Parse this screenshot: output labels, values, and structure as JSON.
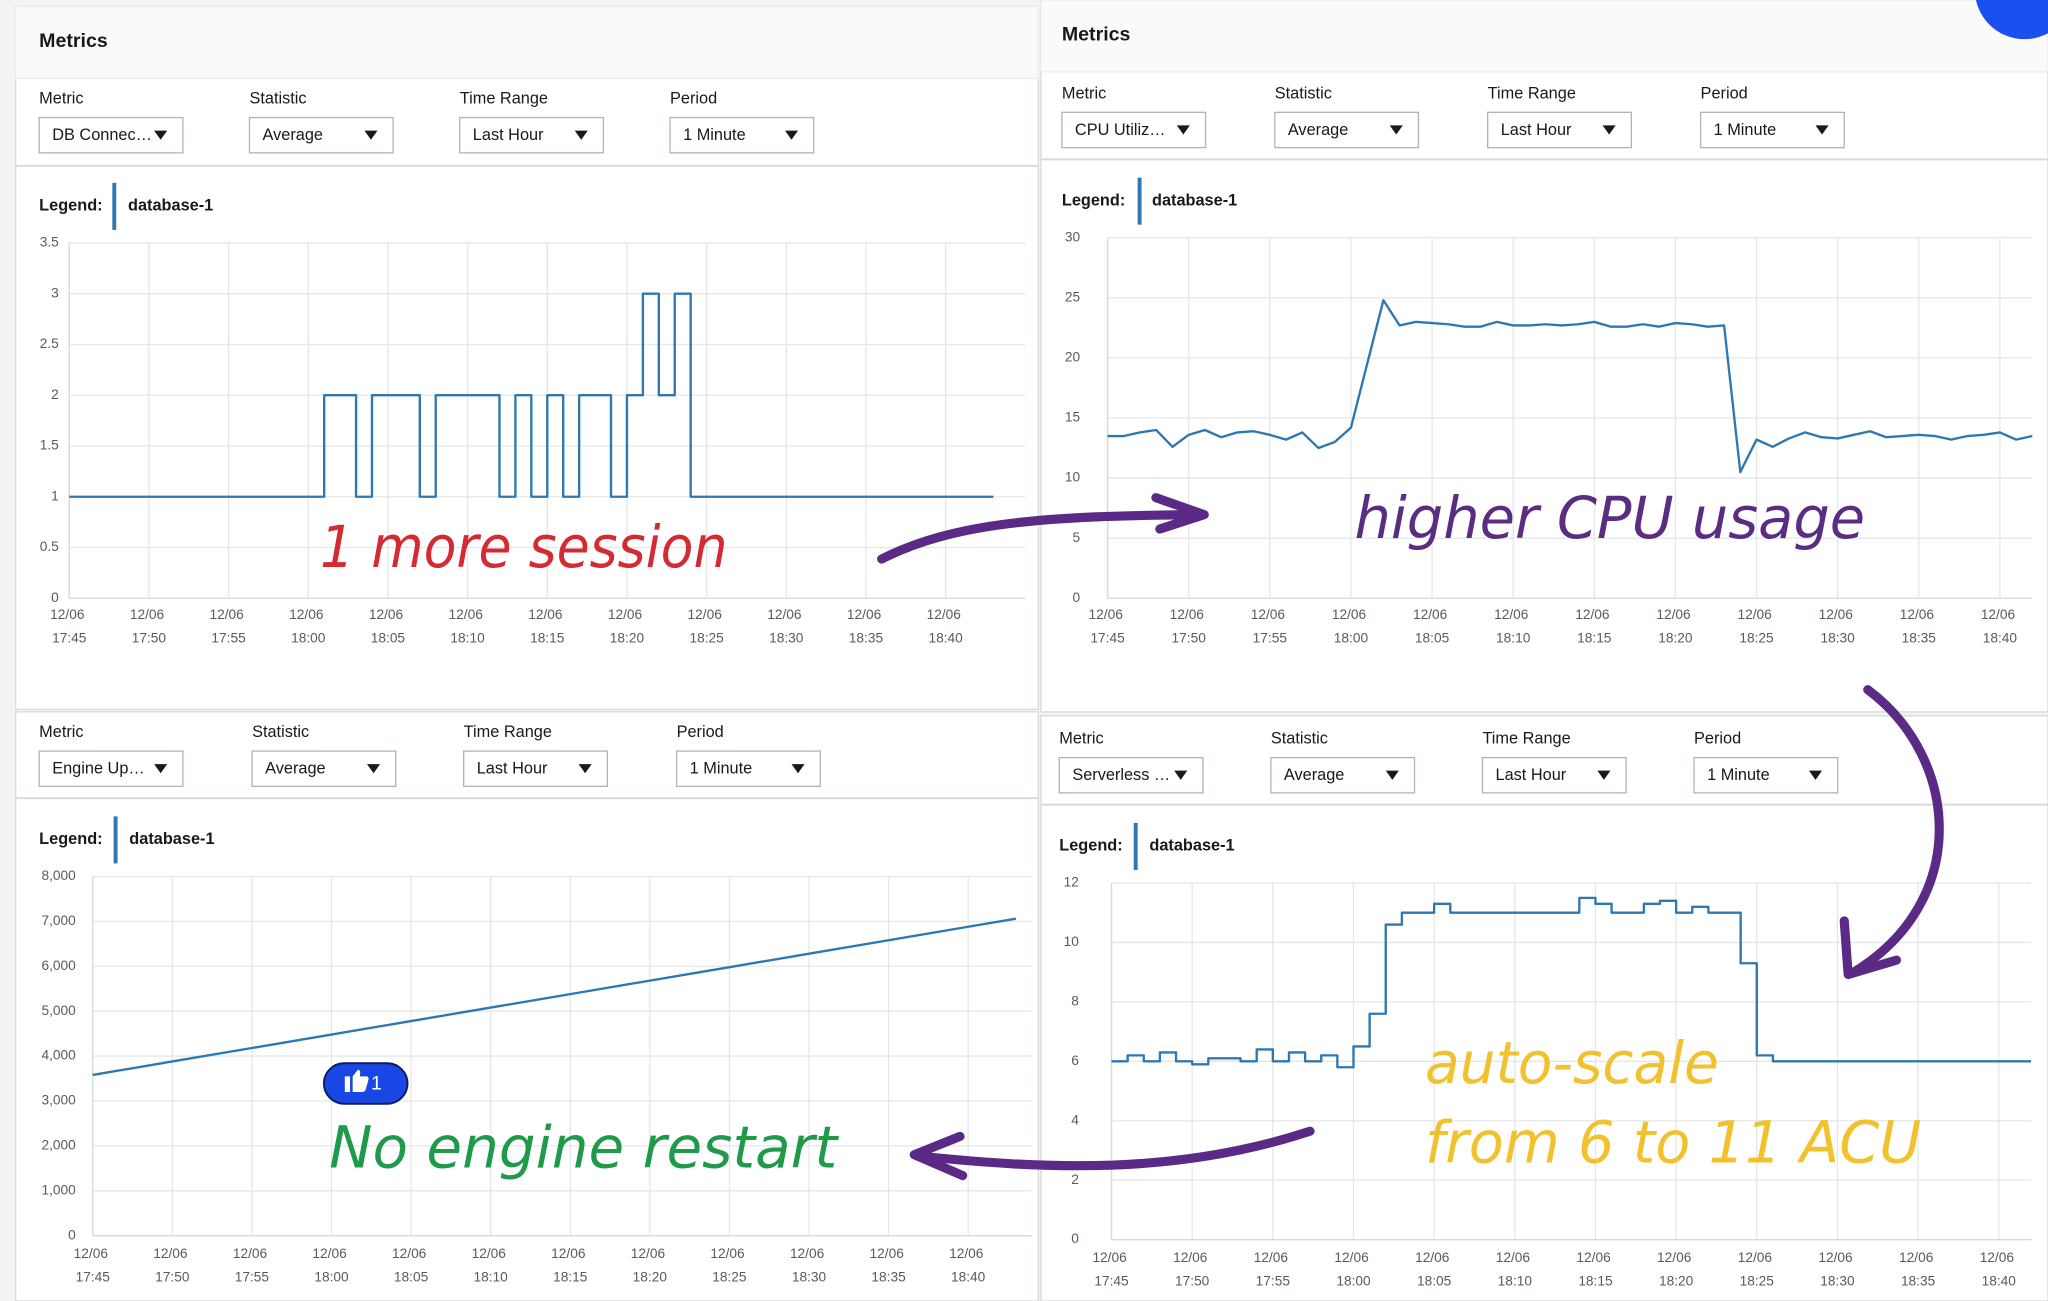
{
  "panels": [
    {
      "header": "Metrics",
      "controls": [
        {
          "label": "Metric",
          "value": "DB Connec…"
        },
        {
          "label": "Statistic",
          "value": "Average"
        },
        {
          "label": "Time Range",
          "value": "Last Hour"
        },
        {
          "label": "Period",
          "value": "1 Minute"
        }
      ],
      "legend_label": "Legend:"
    },
    {
      "header": "Metrics",
      "controls": [
        {
          "label": "Metric",
          "value": "CPU Utiliz…"
        },
        {
          "label": "Statistic",
          "value": "Average"
        },
        {
          "label": "Time Range",
          "value": "Last Hour"
        },
        {
          "label": "Period",
          "value": "1 Minute"
        }
      ],
      "legend_label": "Legend:"
    },
    {
      "controls": [
        {
          "label": "Metric",
          "value": "Engine Up…"
        },
        {
          "label": "Statistic",
          "value": "Average"
        },
        {
          "label": "Time Range",
          "value": "Last Hour"
        },
        {
          "label": "Period",
          "value": "1 Minute"
        }
      ],
      "legend_label": "Legend:"
    },
    {
      "controls": [
        {
          "label": "Metric",
          "value": "Serverless …"
        },
        {
          "label": "Statistic",
          "value": "Average"
        },
        {
          "label": "Time Range",
          "value": "Last Hour"
        },
        {
          "label": "Period",
          "value": "1 Minute"
        }
      ],
      "legend_label": "Legend:"
    }
  ],
  "chart_data": [
    {
      "type": "line",
      "step": true,
      "grid": true,
      "x": [
        "12/06 17:45",
        "12/06 18:01",
        "12/06 18:03",
        "12/06 18:04",
        "12/06 18:07",
        "12/06 18:08",
        "12/06 18:12",
        "12/06 18:13",
        "12/06 18:14",
        "12/06 18:15",
        "12/06 18:16",
        "12/06 18:17",
        "12/06 18:19",
        "12/06 18:20",
        "12/06 18:21",
        "12/06 18:22",
        "12/06 18:23",
        "12/06 18:24",
        "12/06 18:43"
      ],
      "series": [
        {
          "name": "database-1",
          "color": "#2f77b1",
          "values": [
            1,
            2,
            1,
            2,
            1,
            2,
            1,
            2,
            1,
            2,
            1,
            2,
            1,
            2,
            3,
            2,
            3,
            1,
            1
          ]
        }
      ],
      "xlim": [
        "12/06 17:45",
        "12/06 18:45"
      ],
      "xticks": [
        "12/06 17:45",
        "12/06 17:50",
        "12/06 17:55",
        "12/06 18:00",
        "12/06 18:05",
        "12/06 18:10",
        "12/06 18:15",
        "12/06 18:20",
        "12/06 18:25",
        "12/06 18:30",
        "12/06 18:35",
        "12/06 18:40"
      ],
      "ylim": [
        0,
        3.5
      ],
      "yticks": [
        0,
        0.5,
        1,
        1.5,
        2,
        2.5,
        3,
        3.5
      ]
    },
    {
      "type": "line",
      "step": false,
      "grid": true,
      "x": [
        "12/06 17:45",
        "12/06 17:46",
        "12/06 17:47",
        "12/06 17:48",
        "12/06 17:49",
        "12/06 17:50",
        "12/06 17:51",
        "12/06 17:52",
        "12/06 17:53",
        "12/06 17:54",
        "12/06 17:55",
        "12/06 17:56",
        "12/06 17:57",
        "12/06 17:58",
        "12/06 17:59",
        "12/06 18:00",
        "12/06 18:01",
        "12/06 18:02",
        "12/06 18:03",
        "12/06 18:04",
        "12/06 18:05",
        "12/06 18:06",
        "12/06 18:07",
        "12/06 18:08",
        "12/06 18:09",
        "12/06 18:10",
        "12/06 18:11",
        "12/06 18:12",
        "12/06 18:13",
        "12/06 18:14",
        "12/06 18:15",
        "12/06 18:16",
        "12/06 18:17",
        "12/06 18:18",
        "12/06 18:19",
        "12/06 18:20",
        "12/06 18:21",
        "12/06 18:22",
        "12/06 18:23",
        "12/06 18:24",
        "12/06 18:25",
        "12/06 18:26",
        "12/06 18:27",
        "12/06 18:28",
        "12/06 18:29",
        "12/06 18:30",
        "12/06 18:31",
        "12/06 18:32",
        "12/06 18:33",
        "12/06 18:34",
        "12/06 18:35",
        "12/06 18:36",
        "12/06 18:37",
        "12/06 18:38",
        "12/06 18:39",
        "12/06 18:40",
        "12/06 18:41",
        "12/06 18:42"
      ],
      "series": [
        {
          "name": "database-1",
          "color": "#2f77b1",
          "values": [
            13.5,
            13.5,
            13.8,
            14,
            12.6,
            13.6,
            14,
            13.4,
            13.8,
            13.9,
            13.6,
            13.2,
            13.8,
            12.5,
            13,
            14.2,
            19.5,
            24.8,
            22.7,
            23,
            22.9,
            22.8,
            22.6,
            22.6,
            23,
            22.7,
            22.7,
            22.8,
            22.7,
            22.8,
            23,
            22.6,
            22.6,
            22.8,
            22.6,
            22.9,
            22.8,
            22.6,
            22.7,
            10.5,
            13.2,
            12.6,
            13.3,
            13.8,
            13.4,
            13.3,
            13.6,
            13.9,
            13.4,
            13.5,
            13.6,
            13.5,
            13.2,
            13.5,
            13.6,
            13.8,
            13.2,
            13.5
          ]
        }
      ],
      "xlim": [
        "12/06 17:45",
        "12/06 18:42"
      ],
      "xticks": [
        "12/06 17:45",
        "12/06 17:50",
        "12/06 17:55",
        "12/06 18:00",
        "12/06 18:05",
        "12/06 18:10",
        "12/06 18:15",
        "12/06 18:20",
        "12/06 18:25",
        "12/06 18:30",
        "12/06 18:35",
        "12/06 18:40"
      ],
      "ylim": [
        0,
        30
      ],
      "yticks": [
        0,
        5,
        10,
        15,
        20,
        25,
        30
      ]
    },
    {
      "type": "line",
      "step": false,
      "grid": true,
      "x": [
        "12/06 17:45",
        "12/06 17:50",
        "12/06 17:55",
        "12/06 18:00",
        "12/06 18:05",
        "12/06 18:10",
        "12/06 18:15",
        "12/06 18:20",
        "12/06 18:25",
        "12/06 18:30",
        "12/06 18:35",
        "12/06 18:40",
        "12/06 18:43"
      ],
      "series": [
        {
          "name": "database-1",
          "color": "#2f77b1",
          "values": [
            3580,
            3880,
            4180,
            4480,
            4780,
            5080,
            5380,
            5680,
            5980,
            6280,
            6580,
            6880,
            7060
          ]
        }
      ],
      "xlim": [
        "12/06 17:45",
        "12/06 18:44"
      ],
      "xticks": [
        "12/06 17:45",
        "12/06 17:50",
        "12/06 17:55",
        "12/06 18:00",
        "12/06 18:05",
        "12/06 18:10",
        "12/06 18:15",
        "12/06 18:20",
        "12/06 18:25",
        "12/06 18:30",
        "12/06 18:35",
        "12/06 18:40"
      ],
      "ylim": [
        0,
        8000
      ],
      "yticks": [
        0,
        {
          "value": 1000,
          "label": "1,000"
        },
        {
          "value": 2000,
          "label": "2,000"
        },
        {
          "value": 3000,
          "label": "3,000"
        },
        {
          "value": 4000,
          "label": "4,000"
        },
        {
          "value": 5000,
          "label": "5,000"
        },
        {
          "value": 6000,
          "label": "6,000"
        },
        {
          "value": 7000,
          "label": "7,000"
        },
        {
          "value": 8000,
          "label": "8,000"
        }
      ]
    },
    {
      "type": "line",
      "step": true,
      "grid": true,
      "x": [
        "12/06 17:45",
        "12/06 17:46",
        "12/06 17:47",
        "12/06 17:48",
        "12/06 17:49",
        "12/06 17:50",
        "12/06 17:51",
        "12/06 17:52",
        "12/06 17:53",
        "12/06 17:54",
        "12/06 17:55",
        "12/06 17:56",
        "12/06 17:57",
        "12/06 17:58",
        "12/06 17:59",
        "12/06 18:00",
        "12/06 18:01",
        "12/06 18:02",
        "12/06 18:03",
        "12/06 18:05",
        "12/06 18:06",
        "12/06 18:14",
        "12/06 18:15",
        "12/06 18:16",
        "12/06 18:18",
        "12/06 18:19",
        "12/06 18:20",
        "12/06 18:21",
        "12/06 18:22",
        "12/06 18:24",
        "12/06 18:25",
        "12/06 18:26",
        "12/06 18:42"
      ],
      "series": [
        {
          "name": "database-1",
          "color": "#2f77b1",
          "values": [
            6,
            6.2,
            6,
            6.3,
            6,
            5.9,
            6.1,
            6.1,
            6,
            6.4,
            6,
            6.3,
            6,
            6.2,
            5.8,
            6.5,
            7.6,
            10.6,
            11,
            11.3,
            11,
            11.5,
            11.3,
            11,
            11.3,
            11.4,
            11,
            11.2,
            11,
            9.3,
            6.2,
            6,
            6
          ]
        }
      ],
      "xlim": [
        "12/06 17:45",
        "12/06 18:42"
      ],
      "xticks": [
        "12/06 17:45",
        "12/06 17:50",
        "12/06 17:55",
        "12/06 18:00",
        "12/06 18:05",
        "12/06 18:10",
        "12/06 18:15",
        "12/06 18:20",
        "12/06 18:25",
        "12/06 18:30",
        "12/06 18:35",
        "12/06 18:40"
      ],
      "ylim": [
        0,
        12
      ],
      "yticks": [
        0,
        2,
        4,
        6,
        8,
        10,
        12
      ]
    }
  ],
  "annotations": [
    {
      "text": "1 more session",
      "color": "#d42a33"
    },
    {
      "text": "higher CPU usage",
      "color": "#5a2d82"
    },
    {
      "text": "No engine restart",
      "color": "#1f9a4a"
    },
    {
      "text": "auto-scale",
      "color": "#f2c12e"
    },
    {
      "text": "from 6 to 11 ACU",
      "color": "#f2c12e"
    }
  ],
  "reaction": {
    "count": 1
  }
}
